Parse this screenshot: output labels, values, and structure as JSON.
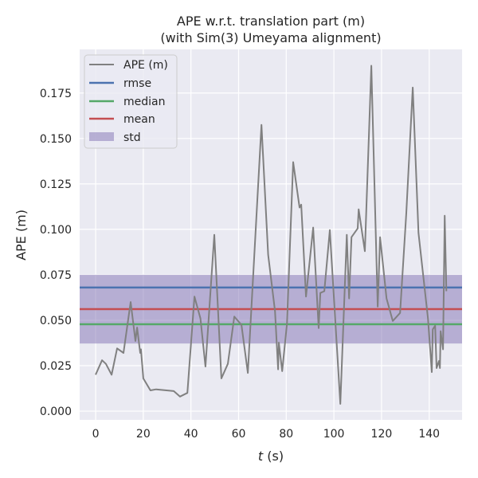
{
  "chart_data": {
    "type": "line",
    "title": "APE w.r.t. translation part (m)",
    "subtitle": "(with Sim(3) Umeyama alignment)",
    "xlabel_italic": "t",
    "xlabel_unit": " (s)",
    "ylabel": "APE (m)",
    "xlim": [
      -6.7,
      153.8
    ],
    "ylim": [
      -0.0048,
      0.199
    ],
    "xticks": [
      0,
      20,
      40,
      60,
      80,
      100,
      120,
      140
    ],
    "yticks": [
      0.0,
      0.025,
      0.05,
      0.075,
      0.1,
      0.125,
      0.15,
      0.175
    ],
    "ytick_labels": [
      "0.000",
      "0.025",
      "0.050",
      "0.075",
      "0.100",
      "0.125",
      "0.150",
      "0.175"
    ],
    "grid": true,
    "legend_position": "top-left",
    "legend": [
      "APE (m)",
      "rmse",
      "median",
      "mean",
      "std"
    ],
    "colors": {
      "ape": "#808080",
      "rmse": "#4c72b0",
      "median": "#55a868",
      "mean": "#c44e52",
      "std": "#8172b3",
      "background": "#eaeaf2"
    },
    "stats": {
      "rmse": 0.068,
      "median": 0.0478,
      "mean": 0.0561,
      "std": 0.0189
    },
    "series": [
      {
        "name": "APE (m)",
        "x": [
          0,
          2.7,
          4.3,
          6.7,
          9,
          11.7,
          14.7,
          16.7,
          17.4,
          18.7,
          19,
          20,
          23,
          25.4,
          32.8,
          35.4,
          38.5,
          41.5,
          44,
          46.1,
          49.8,
          52.8,
          55.5,
          58.2,
          61.2,
          63.9,
          69.6,
          72.4,
          75.3,
          76.6,
          76.9,
          78.3,
          80.3,
          82.9,
          85.6,
          86.3,
          88.3,
          91.3,
          93.6,
          94.3,
          96.0,
          98.3,
          102.7,
          105.4,
          106.4,
          107.4,
          110.0,
          110.4,
          113.0,
          115.7,
          118.4,
          119.4,
          122.1,
          124.7,
          127.8,
          130.4,
          133.1,
          135.5,
          139.5,
          141.1,
          141.5,
          142.5,
          143.1,
          144.1,
          144.5,
          144.8,
          145.8,
          146.5,
          147.2
        ],
        "y": [
          0.02,
          0.028,
          0.026,
          0.02,
          0.0345,
          0.032,
          0.06,
          0.0386,
          0.046,
          0.032,
          0.034,
          0.018,
          0.0114,
          0.012,
          0.011,
          0.008,
          0.01,
          0.063,
          0.051,
          0.0245,
          0.097,
          0.018,
          0.026,
          0.052,
          0.0474,
          0.021,
          0.1575,
          0.086,
          0.055,
          0.023,
          0.0377,
          0.022,
          0.048,
          0.137,
          0.112,
          0.1136,
          0.063,
          0.101,
          0.0457,
          0.065,
          0.066,
          0.0996,
          0.004,
          0.097,
          0.062,
          0.0957,
          0.1005,
          0.111,
          0.088,
          0.19,
          0.0575,
          0.0957,
          0.062,
          0.0496,
          0.054,
          0.109,
          0.178,
          0.098,
          0.051,
          0.0215,
          0.045,
          0.047,
          0.0237,
          0.0276,
          0.0237,
          0.044,
          0.034,
          0.1075,
          0.066
        ]
      }
    ]
  }
}
